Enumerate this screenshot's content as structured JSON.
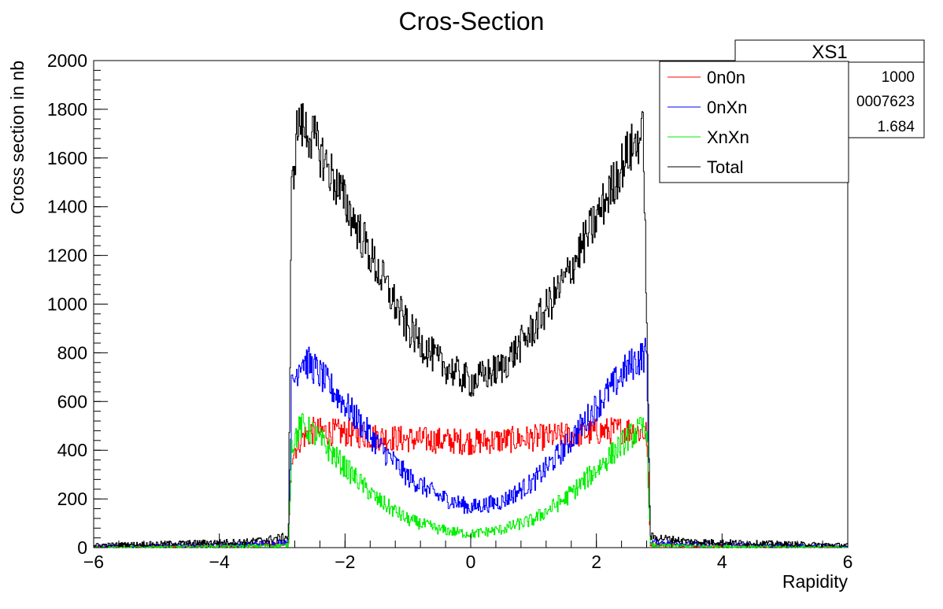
{
  "chart_data": {
    "type": "line",
    "title": "Cros-Section",
    "xlabel": "Rapidity",
    "ylabel": "Cross section in nb",
    "xlim": [
      -6,
      6
    ],
    "ylim": [
      0,
      2000
    ],
    "x_ticks": [
      "−6",
      "−4",
      "−2",
      "0",
      "2",
      "4",
      "6"
    ],
    "y_ticks": [
      "0",
      "200",
      "400",
      "600",
      "800",
      "1000",
      "1200",
      "1400",
      "1600",
      "1800",
      "2000"
    ],
    "legend_position": "top-right",
    "series": [
      {
        "name": "0n0n",
        "color": "#ff0000",
        "points": [
          [
            -6,
            3
          ],
          [
            -3.5,
            8
          ],
          [
            -2.9,
            15
          ],
          [
            -2.85,
            380
          ],
          [
            -2.7,
            450
          ],
          [
            -2.5,
            480
          ],
          [
            -2,
            470
          ],
          [
            -1.5,
            455
          ],
          [
            -1,
            445
          ],
          [
            -0.5,
            440
          ],
          [
            0,
            435
          ],
          [
            0.5,
            440
          ],
          [
            1,
            450
          ],
          [
            1.5,
            460
          ],
          [
            2,
            475
          ],
          [
            2.5,
            485
          ],
          [
            2.8,
            470
          ],
          [
            2.86,
            15
          ],
          [
            3.5,
            8
          ],
          [
            6,
            3
          ]
        ]
      },
      {
        "name": "0nXn",
        "color": "#0000ff",
        "points": [
          [
            -6,
            5
          ],
          [
            -3.5,
            14
          ],
          [
            -2.9,
            25
          ],
          [
            -2.85,
            650
          ],
          [
            -2.7,
            780
          ],
          [
            -2.5,
            740
          ],
          [
            -2,
            590
          ],
          [
            -1.5,
            430
          ],
          [
            -1,
            290
          ],
          [
            -0.5,
            210
          ],
          [
            0,
            165
          ],
          [
            0.5,
            190
          ],
          [
            1,
            270
          ],
          [
            1.5,
            410
          ],
          [
            2,
            580
          ],
          [
            2.5,
            740
          ],
          [
            2.8,
            800
          ],
          [
            2.86,
            25
          ],
          [
            3.5,
            14
          ],
          [
            6,
            5
          ]
        ]
      },
      {
        "name": "XnXn",
        "color": "#00ee00",
        "points": [
          [
            -6,
            2
          ],
          [
            -3.5,
            6
          ],
          [
            -2.9,
            10
          ],
          [
            -2.85,
            420
          ],
          [
            -2.7,
            500
          ],
          [
            -2.5,
            470
          ],
          [
            -2,
            330
          ],
          [
            -1.5,
            200
          ],
          [
            -1,
            115
          ],
          [
            -0.5,
            75
          ],
          [
            0,
            55
          ],
          [
            0.5,
            75
          ],
          [
            1,
            115
          ],
          [
            1.5,
            200
          ],
          [
            2,
            320
          ],
          [
            2.5,
            450
          ],
          [
            2.8,
            500
          ],
          [
            2.86,
            10
          ],
          [
            3.5,
            6
          ],
          [
            6,
            2
          ]
        ]
      },
      {
        "name": "Total",
        "color": "#000000",
        "points": [
          [
            -6,
            10
          ],
          [
            -3.5,
            25
          ],
          [
            -2.9,
            45
          ],
          [
            -2.85,
            1450
          ],
          [
            -2.75,
            1750
          ],
          [
            -2.5,
            1680
          ],
          [
            -2,
            1420
          ],
          [
            -1.5,
            1150
          ],
          [
            -1,
            900
          ],
          [
            -0.5,
            760
          ],
          [
            0,
            680
          ],
          [
            0.5,
            740
          ],
          [
            1,
            900
          ],
          [
            1.5,
            1100
          ],
          [
            2,
            1350
          ],
          [
            2.5,
            1620
          ],
          [
            2.75,
            1700
          ],
          [
            2.86,
            45
          ],
          [
            3.5,
            25
          ],
          [
            6,
            10
          ]
        ]
      }
    ]
  },
  "stats_box": {
    "title": "XS1",
    "values": [
      "1000",
      "0007623",
      "1.684"
    ]
  },
  "colors": {
    "frame": "#000000",
    "background": "#ffffff"
  }
}
